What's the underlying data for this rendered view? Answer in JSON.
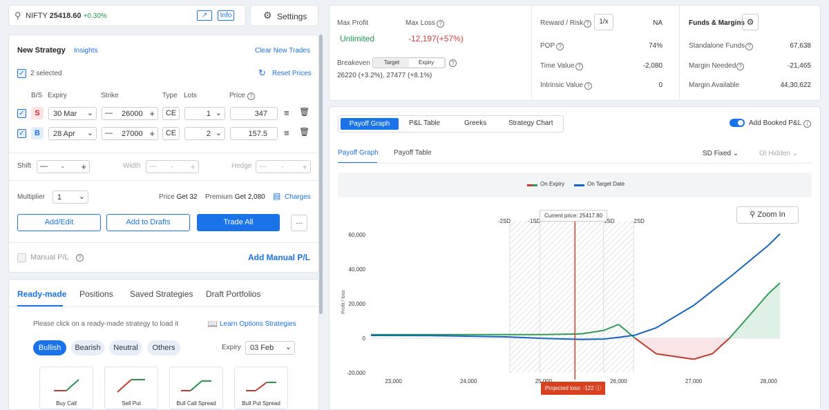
{
  "topbar": {
    "symbol": "NIFTY",
    "price": "25418.60",
    "change": "+0.30%",
    "info": "Info",
    "settings": "Settings"
  },
  "strategy": {
    "title": "New Strategy",
    "insights": "Insights",
    "clear": "Clear New Trades",
    "selected": "2 selected",
    "reset": "Reset Prices",
    "headers": {
      "bs": "B/S",
      "expiry": "Expiry",
      "strike": "Strike",
      "type": "Type",
      "lots": "Lots",
      "price": "Price"
    },
    "legs": [
      {
        "bs": "S",
        "expiry": "30 Mar",
        "strike": "26000",
        "type": "CE",
        "lots": "1",
        "price": "347"
      },
      {
        "bs": "B",
        "expiry": "28 Apr",
        "strike": "27000",
        "type": "CE",
        "lots": "2",
        "price": "157.5"
      }
    ],
    "shift": {
      "label": "Shift",
      "value": "-"
    },
    "width": {
      "label": "Width",
      "value": "-"
    },
    "hedge": {
      "label": "Hedge",
      "value": "-"
    },
    "multiplier": {
      "label": "Multiplier",
      "value": "1"
    },
    "price_label": "Price",
    "price_value": "Get 32",
    "premium_label": "Premium",
    "premium_value": "Get 2,080",
    "charges": "Charges",
    "add_edit": "Add/Edit",
    "add_drafts": "Add to Drafts",
    "trade_all": "Trade All",
    "more": "...",
    "manual_pl": "Manual P/L",
    "add_manual_pl": "Add Manual P/L"
  },
  "readymade": {
    "tabs": [
      "Ready-made",
      "Positions",
      "Saved Strategies",
      "Draft Portfolios"
    ],
    "hint": "Please click on a ready-made strategy to load it",
    "learn": "Learn Options Strategies",
    "filters": [
      "Bullish",
      "Bearish",
      "Neutral",
      "Others"
    ],
    "expiry_label": "Expiry",
    "expiry_value": "03 Feb",
    "cards": [
      "Buy Call",
      "Sell Put",
      "Bull Call Spread",
      "Bull Put Spread"
    ]
  },
  "metrics": {
    "max_profit_label": "Max Profit",
    "max_profit": "Unlimited",
    "max_loss_label": "Max Loss",
    "max_loss": "-12,197(+57%)",
    "breakeven_label": "Breakeven",
    "target": "Target",
    "expiry": "Expiry",
    "breakeven_values": "26220 (+3.2%), 27477 (+8.1%)",
    "rr_label": "Reward / Risk",
    "rr_btn": "1/x",
    "rr_value": "NA",
    "pop_label": "POP",
    "pop_value": "74%",
    "tv_label": "Time Value",
    "tv_value": "-2,080",
    "iv_label": "Intrinsic Value",
    "iv_value": "0"
  },
  "funds": {
    "title": "Funds & Margins",
    "standalone_label": "Standalone Funds",
    "standalone": "67,638",
    "needed_label": "Margin Needed",
    "needed": "-21,465",
    "available_label": "Margin Available",
    "available": "44,30,622"
  },
  "graph": {
    "tabs": [
      "Payoff Graph",
      "P&L Table",
      "Greeks",
      "Strategy Chart"
    ],
    "booked": "Add Booked P&L",
    "subtabs": [
      "Payoff Graph",
      "Payoff Table"
    ],
    "sd": "SD Fixed",
    "oi": "OI Hidden",
    "zoom": "Zoom In",
    "legend_expiry": "On Expiry",
    "legend_target": "On Target Date",
    "current_price": "Current price: 25417.80",
    "projected": "Projected loss: -122",
    "sd_labels": [
      "-2SD",
      "-1SD",
      "1SD",
      "2SD"
    ]
  },
  "chart_data": {
    "type": "line",
    "ylabel": "Profit / loss",
    "xlim": [
      22700,
      28150
    ],
    "ylim": [
      -20000,
      62000
    ],
    "x_ticks": [
      23000,
      24000,
      25000,
      26000,
      27000,
      28000
    ],
    "x_tick_labels": [
      "23,000",
      "24,000",
      "25,000",
      "26,000",
      "27,000",
      "28,000"
    ],
    "y_ticks": [
      -20000,
      0,
      20000,
      40000,
      60000
    ],
    "y_tick_labels": [
      "-20,000",
      "0",
      "20,000",
      "40,000",
      "60,000"
    ],
    "series": [
      {
        "name": "On Expiry",
        "color": "#2e9b56",
        "x": [
          22700,
          24000,
          24500,
          25000,
          25500,
          25800,
          26000,
          26220,
          26500,
          27000,
          27250,
          27477,
          27700,
          28000,
          28150
        ],
        "y": [
          2080,
          2080,
          2080,
          2080,
          2500,
          4500,
          8000,
          0,
          -9000,
          -12197,
          -9000,
          0,
          11000,
          26000,
          32000
        ]
      },
      {
        "name": "On Target Date",
        "color": "#1565c0",
        "x": [
          22700,
          23500,
          24500,
          25000,
          25500,
          25800,
          26000,
          26220,
          26500,
          27000,
          27500,
          28000,
          28150
        ],
        "y": [
          1600,
          1500,
          800,
          -122,
          -700,
          -500,
          500,
          1800,
          6000,
          19000,
          36000,
          54000,
          60500
        ]
      }
    ],
    "current_price": 25417.8,
    "sd_x": [
      24550,
      24950,
      25800,
      26200
    ]
  }
}
